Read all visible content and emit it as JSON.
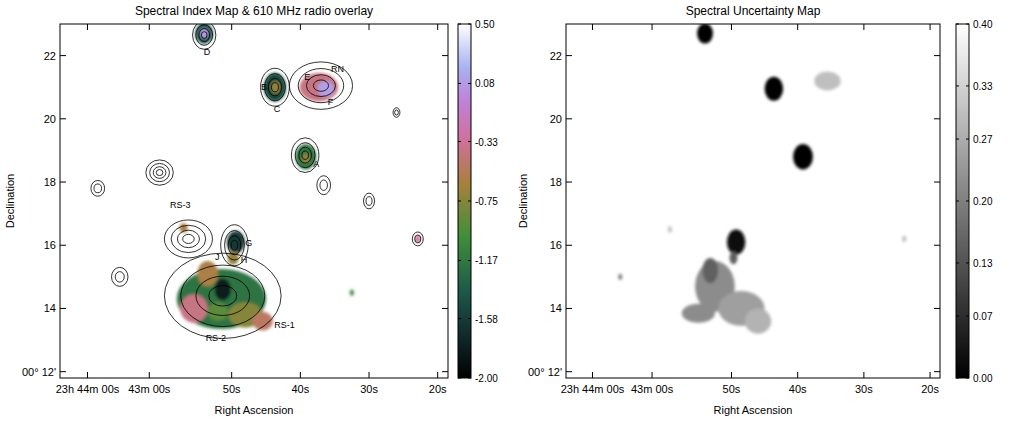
{
  "chart_data": [
    {
      "type": "heatmap",
      "color": "spectral",
      "title": "Spectral Index Map & 610 MHz radio overlay",
      "x_label": "Right Ascension",
      "y_label": "Declination",
      "xlim": [
        75,
        18.5
      ],
      "ylim": [
        11.8,
        23.0
      ],
      "xticks": [
        {
          "value": 71,
          "label": "23h 44m 00s"
        },
        {
          "value": 62,
          "label": "43m 00s"
        },
        {
          "value": 50,
          "label": "50s"
        },
        {
          "value": 40,
          "label": "40s"
        },
        {
          "value": 30,
          "label": "30s"
        },
        {
          "value": 20,
          "label": "20s"
        }
      ],
      "yticks": [
        {
          "value": 12,
          "label": "00° 12'"
        },
        14,
        16,
        18,
        20,
        22
      ],
      "colorbar": {
        "range": [
          -2,
          0.5
        ],
        "ticks": [
          {
            "value": 0.5,
            "label": "0.50"
          },
          0.08,
          -0.33,
          -0.75,
          -1.17,
          -1.58,
          {
            "value": -2,
            "label": "-2.00"
          }
        ]
      },
      "values": [
        {
          "ra": 54.0,
          "dec": 22.7,
          "rx": 1.3,
          "ry": 0.33,
          "value": -1.4
        },
        {
          "ra": 54.0,
          "dec": 22.7,
          "rx": 0.6,
          "ry": 0.16,
          "value": 0.1
        },
        {
          "ra": 43.7,
          "dec": 21.0,
          "rx": 1.6,
          "ry": 0.45,
          "value": -1.5
        },
        {
          "ra": 43.6,
          "dec": 21.0,
          "rx": 0.7,
          "ry": 0.2,
          "value": -0.7
        },
        {
          "ra": 37.3,
          "dec": 21.0,
          "rx": 2.8,
          "ry": 0.45,
          "value": -0.4
        },
        {
          "ra": 36.3,
          "dec": 20.95,
          "rx": 1.2,
          "ry": 0.25,
          "value": 0.1
        },
        {
          "ra": 39.2,
          "dec": 18.8,
          "rx": 1.5,
          "ry": 0.4,
          "value": -1.2
        },
        {
          "ra": 39.2,
          "dec": 18.75,
          "rx": 0.6,
          "ry": 0.15,
          "value": -0.7
        },
        {
          "ra": 49.4,
          "dec": 16.1,
          "rx": 1.3,
          "ry": 0.35,
          "value": -1.6
        },
        {
          "ra": 49.8,
          "dec": 15.6,
          "rx": 0.8,
          "ry": 0.22,
          "value": -0.7
        },
        {
          "ra": 57.0,
          "dec": 16.55,
          "rx": 0.6,
          "ry": 0.15,
          "value": -0.6
        },
        {
          "ra": 51.5,
          "dec": 14.3,
          "rx": 6.5,
          "ry": 0.95,
          "value": -1.2
        },
        {
          "ra": 55.5,
          "dec": 14.0,
          "rx": 2.0,
          "ry": 0.45,
          "value": -0.4
        },
        {
          "ra": 53.5,
          "dec": 15.1,
          "rx": 1.5,
          "ry": 0.4,
          "value": -0.6
        },
        {
          "ra": 51.3,
          "dec": 14.6,
          "rx": 1.2,
          "ry": 0.35,
          "value": -1.8
        },
        {
          "ra": 48.0,
          "dec": 13.8,
          "rx": 2.5,
          "ry": 0.4,
          "value": -0.75
        },
        {
          "ra": 45.5,
          "dec": 13.6,
          "rx": 1.5,
          "ry": 0.3,
          "value": -0.5
        },
        {
          "ra": 52.0,
          "dec": 13.9,
          "rx": 1.5,
          "ry": 0.3,
          "value": -0.9
        },
        {
          "ra": 22.9,
          "dec": 16.2,
          "rx": 0.4,
          "ry": 0.12,
          "value": -0.3
        },
        {
          "ra": 32.5,
          "dec": 14.5,
          "rx": 0.3,
          "ry": 0.1,
          "value": -1.0
        }
      ],
      "contours": [
        {
          "ra": 54.0,
          "dec": 22.65,
          "rx": 1.7,
          "ry": 0.45
        },
        {
          "ra": 43.7,
          "dec": 21.0,
          "rx": 2.1,
          "ry": 0.6
        },
        {
          "ra": 37.0,
          "dec": 21.05,
          "rx": 4.6,
          "ry": 0.75
        },
        {
          "ra": 39.3,
          "dec": 18.85,
          "rx": 2.0,
          "ry": 0.55
        },
        {
          "ra": 49.6,
          "dec": 16.0,
          "rx": 2.0,
          "ry": 0.65
        },
        {
          "ra": 56.3,
          "dec": 16.2,
          "rx": 3.5,
          "ry": 0.6
        },
        {
          "ra": 51.3,
          "dec": 14.4,
          "rx": 8.5,
          "ry": 1.35
        },
        {
          "ra": 66.3,
          "dec": 15.0,
          "rx": 1.2,
          "ry": 0.3
        },
        {
          "ra": 69.5,
          "dec": 17.8,
          "rx": 1.0,
          "ry": 0.25
        },
        {
          "ra": 22.9,
          "dec": 16.2,
          "rx": 0.8,
          "ry": 0.22
        },
        {
          "ra": 36.6,
          "dec": 17.9,
          "rx": 1.0,
          "ry": 0.3
        },
        {
          "ra": 30.0,
          "dec": 17.4,
          "rx": 0.8,
          "ry": 0.25
        },
        {
          "ra": 60.5,
          "dec": 18.3,
          "rx": 2.0,
          "ry": 0.4
        },
        {
          "ra": 26.0,
          "dec": 20.2,
          "rx": 0.5,
          "ry": 0.15
        }
      ],
      "annotations": [
        {
          "text": "D",
          "ra": 53.6,
          "dec": 22.15
        },
        {
          "text": "B",
          "ra": 45.3,
          "dec": 21.05
        },
        {
          "text": "C",
          "ra": 43.4,
          "dec": 20.35
        },
        {
          "text": "E",
          "ra": 39.0,
          "dec": 21.35
        },
        {
          "text": "RN",
          "ra": 34.6,
          "dec": 21.6
        },
        {
          "text": "F",
          "ra": 35.6,
          "dec": 20.55
        },
        {
          "text": "A",
          "ra": 37.7,
          "dec": 18.6
        },
        {
          "text": "G",
          "ra": 47.5,
          "dec": 16.1
        },
        {
          "text": "H",
          "ra": 48.2,
          "dec": 15.55
        },
        {
          "text": "J",
          "ra": 52.1,
          "dec": 15.65
        },
        {
          "text": "RS-3",
          "ra": 57.5,
          "dec": 17.3
        },
        {
          "text": "RS-1",
          "ra": 42.3,
          "dec": 13.5
        },
        {
          "text": "RS-2",
          "ra": 52.3,
          "dec": 13.1
        }
      ]
    },
    {
      "type": "heatmap",
      "color": "gray",
      "title": "Spectral Uncertainty Map",
      "x_label": "Right Ascension",
      "y_label": "Declination",
      "xlim": [
        75,
        18.5
      ],
      "ylim": [
        11.8,
        23.0
      ],
      "xticks": [
        {
          "value": 71,
          "label": "23h 44m 00s"
        },
        {
          "value": 62,
          "label": "43m 00s"
        },
        {
          "value": 50,
          "label": "50s"
        },
        {
          "value": 40,
          "label": "40s"
        },
        {
          "value": 30,
          "label": "30s"
        },
        {
          "value": 20,
          "label": "20s"
        }
      ],
      "yticks": [
        {
          "value": 12,
          "label": "00° 12'"
        },
        14,
        16,
        18,
        20,
        22
      ],
      "colorbar": {
        "range": [
          0,
          0.4
        ],
        "ticks": [
          {
            "value": 0.4,
            "label": "0.40"
          },
          0.33,
          0.27,
          {
            "value": 0.2,
            "label": "0.20"
          },
          0.13,
          0.07,
          {
            "value": 0,
            "label": "0.00"
          }
        ]
      },
      "values": [
        {
          "ra": 54.0,
          "dec": 22.7,
          "rx": 1.2,
          "ry": 0.32,
          "value": 0.01
        },
        {
          "ra": 43.6,
          "dec": 20.95,
          "rx": 1.4,
          "ry": 0.38,
          "value": 0.01
        },
        {
          "ra": 35.5,
          "dec": 21.2,
          "rx": 2.0,
          "ry": 0.3,
          "value": 0.3
        },
        {
          "ra": 39.2,
          "dec": 18.8,
          "rx": 1.5,
          "ry": 0.4,
          "value": 0.01
        },
        {
          "ra": 49.3,
          "dec": 16.1,
          "rx": 1.4,
          "ry": 0.4,
          "value": 0.02
        },
        {
          "ra": 49.7,
          "dec": 15.6,
          "rx": 0.6,
          "ry": 0.2,
          "value": 0.15
        },
        {
          "ra": 52.5,
          "dec": 14.7,
          "rx": 3.0,
          "ry": 0.8,
          "value": 0.22
        },
        {
          "ra": 48.5,
          "dec": 14.0,
          "rx": 3.5,
          "ry": 0.55,
          "value": 0.25
        },
        {
          "ra": 46.0,
          "dec": 13.6,
          "rx": 2.0,
          "ry": 0.4,
          "value": 0.28
        },
        {
          "ra": 55.0,
          "dec": 13.85,
          "rx": 2.5,
          "ry": 0.3,
          "value": 0.22
        },
        {
          "ra": 53.2,
          "dec": 15.2,
          "rx": 1.2,
          "ry": 0.4,
          "value": 0.15
        },
        {
          "ra": 66.8,
          "dec": 15.0,
          "rx": 0.3,
          "ry": 0.1,
          "value": 0.2
        },
        {
          "ra": 59.3,
          "dec": 16.5,
          "rx": 0.3,
          "ry": 0.1,
          "value": 0.3
        },
        {
          "ra": 23.9,
          "dec": 16.2,
          "rx": 0.3,
          "ry": 0.1,
          "value": 0.3
        }
      ]
    }
  ]
}
